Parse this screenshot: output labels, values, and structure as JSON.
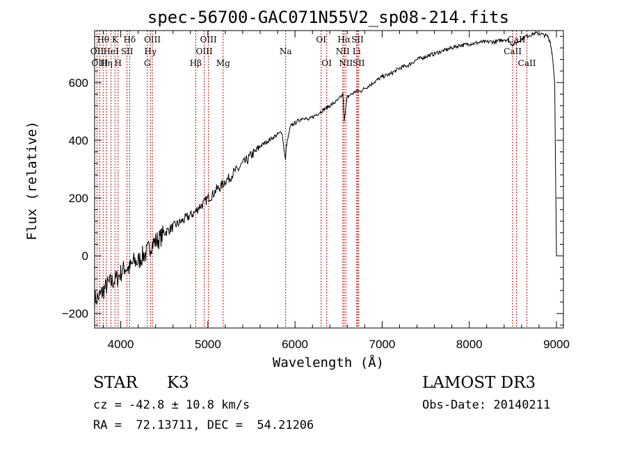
{
  "chart_data": {
    "type": "line",
    "title": "spec-56700-GAC071N55V2_sp08-214.fits",
    "xlabel": "Wavelength (Å)",
    "ylabel": "Flux (relative)",
    "xlim": [
      3700,
      9080
    ],
    "ylim": [
      -250,
      780
    ],
    "x_ticks": [
      4000,
      5000,
      6000,
      7000,
      8000,
      9000
    ],
    "y_ticks": [
      -200,
      0,
      200,
      400,
      600
    ],
    "line_color": "#000000",
    "marker_color": "#cc0000",
    "spectrum": {
      "x": [
        3700,
        3760,
        3800,
        3850,
        3900,
        3950,
        4000,
        4050,
        4100,
        4150,
        4200,
        4250,
        4300,
        4350,
        4400,
        4450,
        4500,
        4550,
        4600,
        4650,
        4700,
        4750,
        4800,
        4850,
        4900,
        4950,
        5000,
        5050,
        5100,
        5150,
        5200,
        5250,
        5300,
        5350,
        5400,
        5450,
        5500,
        5550,
        5600,
        5650,
        5700,
        5750,
        5800,
        5850,
        5890,
        5900,
        5950,
        6000,
        6050,
        6100,
        6150,
        6200,
        6250,
        6300,
        6350,
        6400,
        6450,
        6500,
        6550,
        6563,
        6600,
        6650,
        6700,
        6750,
        6800,
        6850,
        6900,
        6950,
        7000,
        7050,
        7100,
        7150,
        7200,
        7250,
        7300,
        7350,
        7400,
        7450,
        7500,
        7550,
        7600,
        7650,
        7700,
        7750,
        7800,
        7850,
        7900,
        7950,
        8000,
        8050,
        8100,
        8150,
        8200,
        8250,
        8300,
        8350,
        8400,
        8450,
        8500,
        8550,
        8600,
        8650,
        8700,
        8750,
        8800,
        8850,
        8900,
        8930,
        8950,
        8980,
        9000,
        9005
      ],
      "y": [
        -150,
        -140,
        -120,
        -100,
        -90,
        -80,
        -60,
        -40,
        -45,
        -20,
        -20,
        0,
        10,
        40,
        50,
        60,
        80,
        90,
        100,
        110,
        120,
        130,
        140,
        150,
        170,
        180,
        200,
        210,
        230,
        240,
        260,
        270,
        290,
        300,
        320,
        330,
        350,
        360,
        380,
        390,
        400,
        410,
        420,
        430,
        330,
        380,
        450,
        460,
        470,
        480,
        470,
        480,
        490,
        500,
        510,
        520,
        530,
        540,
        560,
        470,
        550,
        560,
        570,
        570,
        580,
        590,
        600,
        610,
        620,
        625,
        630,
        640,
        650,
        655,
        660,
        670,
        680,
        685,
        690,
        695,
        700,
        705,
        710,
        715,
        720,
        725,
        730,
        730,
        735,
        735,
        738,
        740,
        740,
        742,
        740,
        745,
        750,
        745,
        730,
        740,
        750,
        760,
        765,
        770,
        770,
        765,
        760,
        740,
        700,
        600,
        0,
        0
      ]
    },
    "lines": [
      {
        "label": "Hθ",
        "wl": 3798,
        "row": 1
      },
      {
        "label": "K",
        "wl": 3934,
        "row": 1
      },
      {
        "label": "Hδ",
        "wl": 4102,
        "row": 1
      },
      {
        "label": "OIII",
        "wl": 4363,
        "row": 1
      },
      {
        "label": "OIII",
        "wl": 5007,
        "row": 1
      },
      {
        "label": "OI",
        "wl": 6300,
        "row": 1
      },
      {
        "label": "Hα",
        "wl": 6563,
        "row": 1
      },
      {
        "label": "SII",
        "wl": 6717,
        "row": 1
      },
      {
        "label": "CaII",
        "wl": 8542,
        "row": 1
      },
      {
        "label": "OII",
        "wl": 3727,
        "row": 2
      },
      {
        "label": "HeI",
        "wl": 3889,
        "row": 2
      },
      {
        "label": "SII",
        "wl": 4072,
        "row": 2
      },
      {
        "label": "Hγ",
        "wl": 4340,
        "row": 2
      },
      {
        "label": "OIII",
        "wl": 4959,
        "row": 2
      },
      {
        "label": "Na",
        "wl": 5893,
        "row": 2
      },
      {
        "label": "NII",
        "wl": 6548,
        "row": 2
      },
      {
        "label": "Li",
        "wl": 6708,
        "row": 2
      },
      {
        "label": "CaII",
        "wl": 8498,
        "row": 2
      },
      {
        "label": "OIII",
        "wl": 3760,
        "row": 3
      },
      {
        "label": "Hη",
        "wl": 3835,
        "row": 3
      },
      {
        "label": "H",
        "wl": 3969,
        "row": 3
      },
      {
        "label": "G",
        "wl": 4305,
        "row": 3
      },
      {
        "label": "Hβ",
        "wl": 4861,
        "row": 3
      },
      {
        "label": "Mg",
        "wl": 5175,
        "row": 3
      },
      {
        "label": "OI",
        "wl": 6364,
        "row": 3
      },
      {
        "label": "NII",
        "wl": 6583,
        "row": 3
      },
      {
        "label": "SII",
        "wl": 6731,
        "row": 3
      },
      {
        "label": "CaII",
        "wl": 8662,
        "row": 3
      }
    ]
  },
  "info": {
    "class_label": "STAR",
    "subclass": "K3",
    "survey": "LAMOST DR3",
    "cz": "cz = -42.8 ± 10.8 km/s",
    "obs_date": "Obs-Date: 20140211",
    "coords": "RA =  72.13711, DEC =  54.21206"
  }
}
